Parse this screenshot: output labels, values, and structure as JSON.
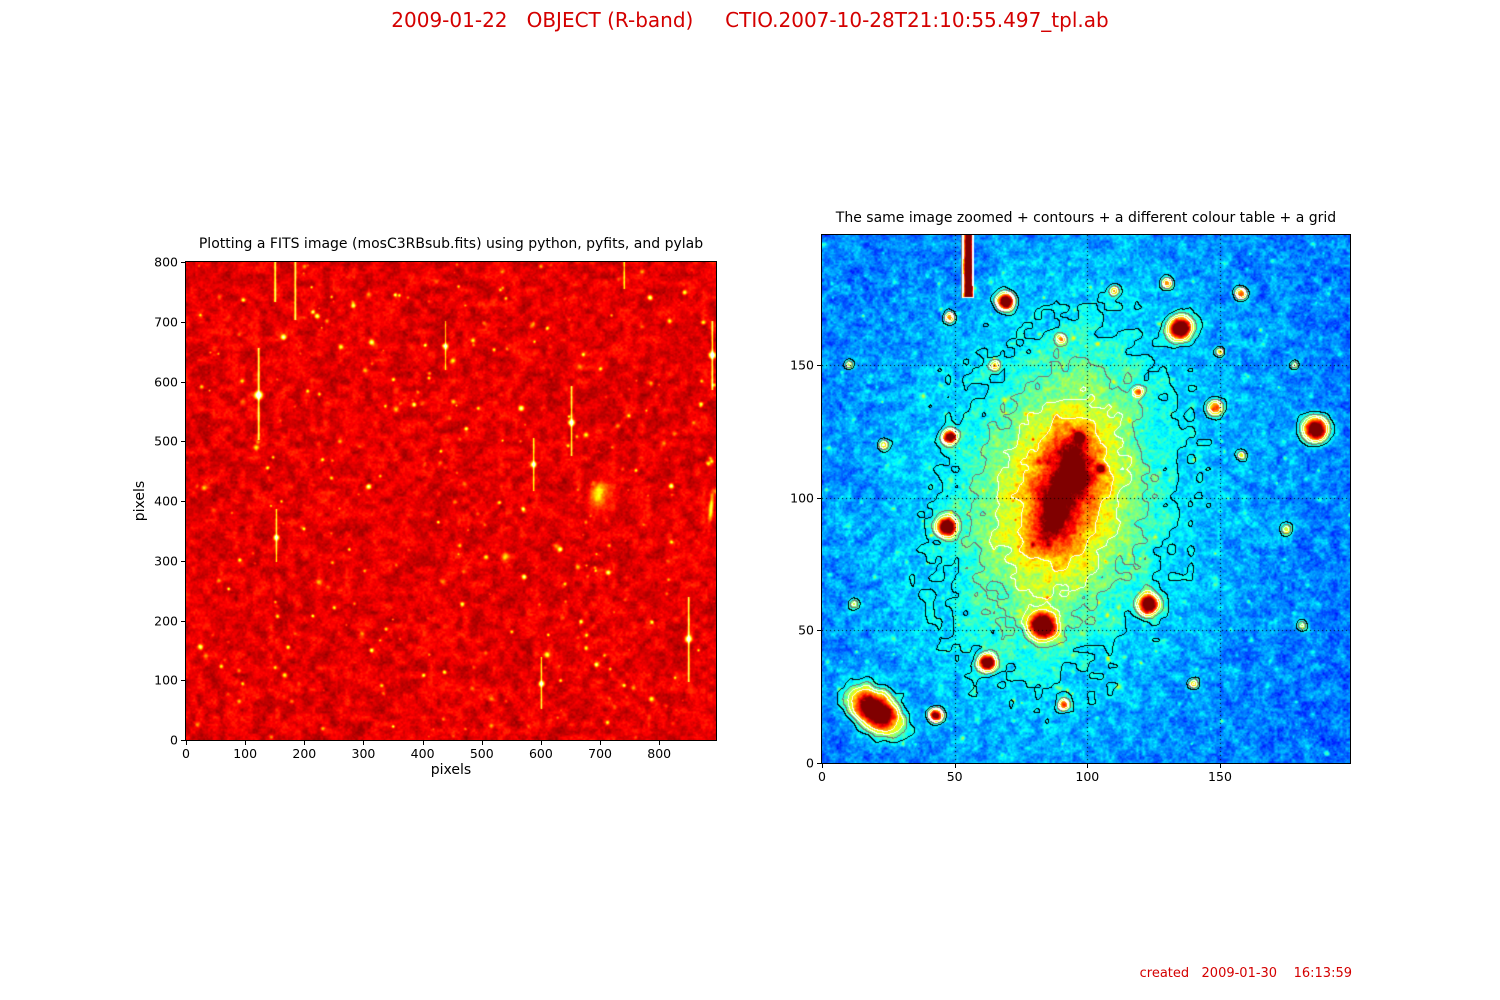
{
  "header": {
    "title": "2009-01-22   OBJECT (R-band)     CTIO.2007-10-28T21:10:55.497_tpl.ab",
    "color": "#d40000"
  },
  "footer": {
    "text": "created   2009-01-30    16:13:59",
    "color": "#d40000"
  },
  "chart_data": [
    {
      "type": "heatmap",
      "title": "Plotting a FITS image (mosC3RBsub.fits) using python, pyfits, and pylab",
      "xlabel": "pixels",
      "ylabel": "pixels",
      "xlim": [
        0,
        896
      ],
      "ylim": [
        0,
        800
      ],
      "xticks": [
        0,
        100,
        200,
        300,
        400,
        500,
        600,
        700,
        800
      ],
      "yticks": [
        0,
        100,
        200,
        300,
        400,
        500,
        600,
        700,
        800
      ],
      "colormap": "hot",
      "grid": false,
      "background_level": 0.3,
      "noise": {
        "seed": 42,
        "coarse_cell": 7,
        "coarse_amp": 0.14,
        "mid_cell": 2.5,
        "mid_amp": 0.07,
        "fine_cell": 1.6,
        "fine_amp": 0.05
      },
      "faint_star_count": 270,
      "star_format": "[x, y, amplitude, sigma]",
      "stars": [
        [
          122,
          578,
          1.0,
          4
        ],
        [
          651,
          532,
          0.9,
          3.5
        ],
        [
          587,
          462,
          0.8,
          3
        ],
        [
          152,
          340,
          0.8,
          3
        ],
        [
          849,
          170,
          0.9,
          3.5
        ],
        [
          600,
          95,
          0.8,
          3
        ],
        [
          438,
          660,
          0.7,
          2.8
        ],
        [
          889,
          645,
          0.9,
          3.5
        ],
        [
          164,
          675,
          0.7,
          3
        ],
        [
          282,
          728,
          0.55,
          2.5
        ],
        [
          784,
          741,
          0.6,
          2.5
        ],
        [
          842,
          750,
          0.55,
          2.5
        ],
        [
          566,
          556,
          0.65,
          2.8
        ],
        [
          308,
          425,
          0.6,
          2.6
        ],
        [
          385,
          562,
          0.55,
          2.4
        ],
        [
          473,
          522,
          0.5,
          2.2
        ],
        [
          632,
          320,
          0.6,
          2.6
        ],
        [
          713,
          281,
          0.55,
          2.4
        ],
        [
          571,
          274,
          0.6,
          2.5
        ],
        [
          466,
          228,
          0.55,
          2.4
        ],
        [
          667,
          199,
          0.5,
          2.2
        ],
        [
          313,
          151,
          0.55,
          2.4
        ],
        [
          401,
          109,
          0.5,
          2.2
        ],
        [
          787,
          198,
          0.5,
          2.2
        ],
        [
          693,
          127,
          0.55,
          2.4
        ],
        [
          172,
          156,
          0.5,
          2.2
        ],
        [
          96,
          737,
          0.5,
          2.2
        ],
        [
          870,
          563,
          0.5,
          2.4
        ],
        [
          137,
          456,
          0.45,
          2
        ],
        [
          230,
          470,
          0.4,
          2
        ],
        [
          350,
          604,
          0.45,
          2
        ],
        [
          430,
          484,
          0.4,
          2
        ],
        [
          520,
          654,
          0.4,
          2
        ],
        [
          610,
          690,
          0.45,
          2
        ],
        [
          700,
          622,
          0.4,
          2
        ],
        [
          760,
          452,
          0.4,
          2
        ],
        [
          820,
          332,
          0.4,
          2
        ],
        [
          250,
          222,
          0.4,
          2
        ],
        [
          330,
          92,
          0.4,
          2
        ],
        [
          550,
          182,
          0.4,
          2
        ],
        [
          640,
          262,
          0.4,
          2
        ],
        [
          740,
          92,
          0.45,
          2
        ],
        [
          150,
          122,
          0.4,
          2
        ],
        [
          90,
          302,
          0.4,
          2
        ],
        [
          205,
          585,
          0.4,
          2
        ],
        [
          95,
          95,
          0.4,
          2
        ],
        [
          540,
          740,
          0.4,
          2
        ],
        [
          460,
          760,
          0.35,
          1.8
        ],
        [
          360,
          745,
          0.35,
          1.8
        ]
      ],
      "trail_format": "[x, y_from, y_to, amplitude, sigma]",
      "trails": [
        [
          122,
          505,
          655,
          0.5,
          1.2
        ],
        [
          651,
          478,
          592,
          0.45,
          1.1
        ],
        [
          587,
          420,
          505,
          0.4,
          1.0
        ],
        [
          152,
          300,
          385,
          0.4,
          1.0
        ],
        [
          849,
          100,
          238,
          0.5,
          1.1
        ],
        [
          600,
          55,
          138,
          0.4,
          1.0
        ],
        [
          438,
          622,
          700,
          0.35,
          0.9
        ],
        [
          889,
          588,
          700,
          0.45,
          1.1
        ],
        [
          150,
          735,
          800,
          0.5,
          1.2
        ],
        [
          184,
          705,
          800,
          0.5,
          1.2
        ],
        [
          740,
          758,
          800,
          0.4,
          1.0
        ]
      ],
      "galaxy_format": "[x, y, sigma_major, sigma_minor, position_angle_deg, amplitude]",
      "galaxies": [
        [
          696,
          412,
          19,
          11,
          75,
          0.22
        ],
        [
          697,
          413,
          8,
          5,
          75,
          0.2
        ],
        [
          887,
          390,
          16,
          2.5,
          85,
          0.5
        ],
        [
          539,
          308,
          5,
          3.5,
          80,
          0.3
        ],
        [
          625,
          326,
          4,
          3,
          0,
          0.22
        ]
      ]
    },
    {
      "type": "heatmap",
      "title": "The same image zoomed + contours + a different colour table + a grid",
      "xlabel": "",
      "ylabel": "",
      "xlim": [
        0,
        199
      ],
      "ylim": [
        0,
        199
      ],
      "xticks": [
        0,
        50,
        100,
        150
      ],
      "yticks": [
        0,
        50,
        100,
        150
      ],
      "colormap": "jet",
      "grid": true,
      "grid_ticks": [
        50,
        100,
        150
      ],
      "background_level": 0.23,
      "noise": {
        "seed": 7,
        "coarse_cell": 9,
        "coarse_amp": 0.1,
        "mid_cell": 3,
        "mid_amp": 0.1,
        "fine_cell": 1.5,
        "fine_amp": 0.07
      },
      "speckle_count": 550,
      "contour_levels": [
        {
          "level": 0.36,
          "color": "#000000"
        },
        {
          "level": 0.45,
          "color": "#777777"
        },
        {
          "level": 0.54,
          "color": "#ffffff"
        },
        {
          "level": 0.65,
          "color": "#ffffff"
        }
      ],
      "star_format": "[x, y, amplitude, sigma]",
      "stars": [
        [
          69,
          174,
          0.95,
          2.2
        ],
        [
          135,
          164,
          1.0,
          3.0
        ],
        [
          186,
          126,
          1.0,
          3.2
        ],
        [
          148,
          134,
          0.5,
          2.0
        ],
        [
          48,
          123,
          0.8,
          1.8
        ],
        [
          47,
          89,
          0.95,
          2.4
        ],
        [
          123,
          60,
          0.95,
          2.6
        ],
        [
          83,
          52,
          1.0,
          3.2
        ],
        [
          62,
          38,
          0.9,
          2.2
        ],
        [
          43,
          18,
          0.8,
          1.8
        ],
        [
          91,
          22,
          0.5,
          1.6
        ],
        [
          130,
          181,
          0.45,
          1.4
        ],
        [
          158,
          177,
          0.55,
          1.6
        ],
        [
          48,
          168,
          0.45,
          1.4
        ],
        [
          175,
          88,
          0.35,
          1.6
        ],
        [
          181,
          52,
          0.3,
          1.5
        ],
        [
          97,
          123,
          0.5,
          1.3
        ],
        [
          105,
          111,
          0.45,
          1.2
        ],
        [
          119,
          140,
          0.45,
          1.3
        ],
        [
          158,
          116,
          0.3,
          1.2
        ],
        [
          23,
          120,
          0.35,
          1.4
        ],
        [
          12,
          60,
          0.3,
          1.4
        ],
        [
          140,
          30,
          0.35,
          1.4
        ],
        [
          65,
          150,
          0.4,
          1.5
        ],
        [
          110,
          178,
          0.35,
          1.3
        ],
        [
          150,
          155,
          0.3,
          1.2
        ],
        [
          10,
          150,
          0.3,
          1.3
        ],
        [
          178,
          150,
          0.3,
          1.2
        ],
        [
          90,
          160,
          0.35,
          1.2
        ]
      ],
      "trail_format": "[x, y_from, y_to, amplitude, sigma]",
      "trails": [
        [
          55,
          176,
          200,
          1.0,
          1.3
        ]
      ],
      "galaxy_format": "[x, y, sigma_major, sigma_minor, position_angle_deg, amplitude]",
      "galaxies": [
        [
          90,
          100,
          70,
          55,
          78,
          0.13
        ],
        [
          89,
          98,
          40,
          26,
          78,
          0.2
        ],
        [
          91,
          103,
          25,
          14,
          78,
          0.22
        ],
        [
          92,
          106,
          14,
          7,
          78,
          0.26
        ],
        [
          95,
          116,
          5,
          3.5,
          70,
          0.18
        ],
        [
          87,
          94,
          6,
          4,
          78,
          0.2
        ],
        [
          98,
          107,
          3.5,
          2.5,
          60,
          0.14
        ],
        [
          84,
          86,
          4,
          3,
          78,
          0.12
        ],
        [
          20,
          20,
          7,
          4.5,
          -35,
          1.0
        ]
      ]
    }
  ]
}
